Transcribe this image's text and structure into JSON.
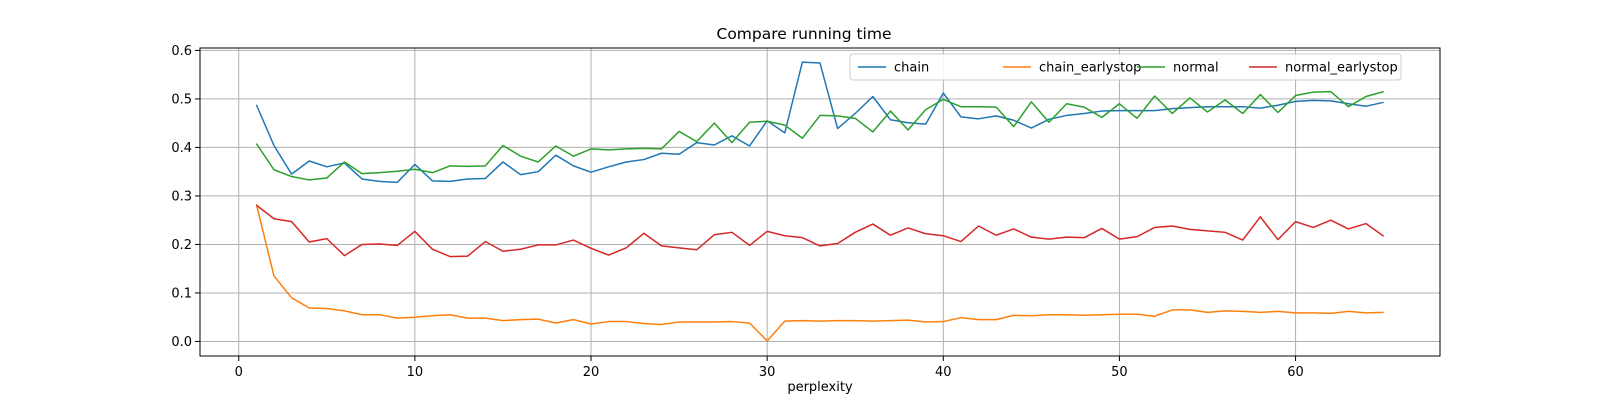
{
  "chart_data": {
    "type": "line",
    "title": "Compare running time",
    "xlabel": "perplexity",
    "ylabel": "",
    "xlim": [
      -2.2,
      68.2
    ],
    "ylim": [
      -0.03,
      0.605
    ],
    "xticks": [
      0,
      10,
      20,
      30,
      40,
      50,
      60
    ],
    "yticks": [
      0.0,
      0.1,
      0.2,
      0.3,
      0.4,
      0.5,
      0.6
    ],
    "grid": true,
    "legend_position": "top-right",
    "x": [
      1,
      2,
      3,
      4,
      5,
      6,
      7,
      8,
      9,
      10,
      11,
      12,
      13,
      14,
      15,
      16,
      17,
      18,
      19,
      20,
      21,
      22,
      23,
      24,
      25,
      26,
      27,
      28,
      29,
      30,
      31,
      32,
      33,
      34,
      35,
      36,
      37,
      38,
      39,
      40,
      41,
      42,
      43,
      44,
      45,
      46,
      47,
      48,
      49,
      50,
      51,
      52,
      53,
      54,
      55,
      56,
      57,
      58,
      59,
      60,
      61,
      62,
      63,
      64,
      65
    ],
    "series": [
      {
        "name": "chain",
        "color": "#1f77b4",
        "values": [
          0.488,
          0.404,
          0.345,
          0.372,
          0.36,
          0.368,
          0.335,
          0.33,
          0.328,
          0.365,
          0.331,
          0.33,
          0.335,
          0.336,
          0.37,
          0.344,
          0.35,
          0.384,
          0.362,
          0.349,
          0.36,
          0.37,
          0.375,
          0.388,
          0.386,
          0.41,
          0.405,
          0.424,
          0.403,
          0.455,
          0.43,
          0.576,
          0.574,
          0.439,
          0.47,
          0.505,
          0.457,
          0.451,
          0.448,
          0.512,
          0.463,
          0.459,
          0.465,
          0.456,
          0.44,
          0.458,
          0.466,
          0.47,
          0.475,
          0.476,
          0.476,
          0.476,
          0.48,
          0.482,
          0.484,
          0.484,
          0.484,
          0.481,
          0.487,
          0.495,
          0.497,
          0.496,
          0.49,
          0.485,
          0.493
        ]
      },
      {
        "name": "chain_earlystop",
        "color": "#ff7f0e",
        "values": [
          0.283,
          0.135,
          0.09,
          0.069,
          0.068,
          0.063,
          0.055,
          0.055,
          0.048,
          0.05,
          0.053,
          0.055,
          0.048,
          0.048,
          0.043,
          0.045,
          0.046,
          0.038,
          0.045,
          0.036,
          0.041,
          0.041,
          0.037,
          0.035,
          0.04,
          0.04,
          0.04,
          0.041,
          0.038,
          0.001,
          0.042,
          0.043,
          0.042,
          0.043,
          0.043,
          0.042,
          0.043,
          0.044,
          0.04,
          0.041,
          0.049,
          0.045,
          0.045,
          0.054,
          0.053,
          0.055,
          0.055,
          0.054,
          0.055,
          0.056,
          0.056,
          0.052,
          0.065,
          0.065,
          0.06,
          0.063,
          0.062,
          0.06,
          0.062,
          0.059,
          0.059,
          0.058,
          0.062,
          0.059,
          0.06
        ]
      },
      {
        "name": "normal",
        "color": "#2ca02c",
        "values": [
          0.408,
          0.354,
          0.34,
          0.333,
          0.337,
          0.37,
          0.346,
          0.348,
          0.351,
          0.355,
          0.348,
          0.362,
          0.361,
          0.362,
          0.404,
          0.382,
          0.37,
          0.403,
          0.382,
          0.397,
          0.395,
          0.397,
          0.398,
          0.397,
          0.433,
          0.412,
          0.45,
          0.41,
          0.452,
          0.454,
          0.446,
          0.419,
          0.466,
          0.465,
          0.46,
          0.432,
          0.475,
          0.436,
          0.478,
          0.499,
          0.484,
          0.484,
          0.483,
          0.443,
          0.494,
          0.452,
          0.49,
          0.483,
          0.462,
          0.49,
          0.46,
          0.506,
          0.47,
          0.502,
          0.473,
          0.498,
          0.47,
          0.509,
          0.472,
          0.507,
          0.514,
          0.515,
          0.484,
          0.505,
          0.515
        ]
      },
      {
        "name": "normal_earlystop",
        "color": "#d62728",
        "values": [
          0.281,
          0.253,
          0.247,
          0.205,
          0.212,
          0.177,
          0.2,
          0.201,
          0.198,
          0.227,
          0.19,
          0.175,
          0.176,
          0.206,
          0.186,
          0.19,
          0.199,
          0.199,
          0.209,
          0.192,
          0.178,
          0.193,
          0.223,
          0.197,
          0.193,
          0.189,
          0.22,
          0.225,
          0.198,
          0.227,
          0.218,
          0.214,
          0.197,
          0.202,
          0.225,
          0.242,
          0.219,
          0.234,
          0.222,
          0.218,
          0.206,
          0.238,
          0.219,
          0.232,
          0.215,
          0.211,
          0.215,
          0.214,
          0.233,
          0.211,
          0.216,
          0.235,
          0.238,
          0.231,
          0.228,
          0.225,
          0.209,
          0.257,
          0.21,
          0.247,
          0.235,
          0.25,
          0.232,
          0.243,
          0.217
        ]
      }
    ]
  }
}
